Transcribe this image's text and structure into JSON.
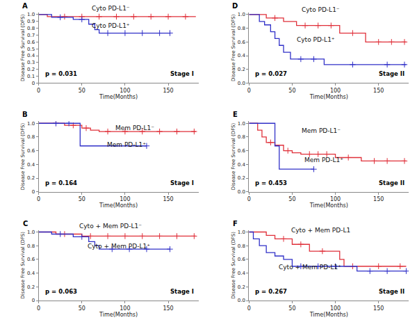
{
  "chart_data": [
    {
      "type": "line",
      "title": "A",
      "xlabel": "Time(Months)",
      "ylabel": "Disease Free Survival (DFS)",
      "annotations": [
        "p = 0.031",
        "Stage I"
      ],
      "line_style": "step",
      "marker": "cross",
      "grid": false,
      "xlim": [
        0,
        185
      ],
      "xticks": [
        0,
        50,
        100,
        150
      ],
      "ylim": [
        0,
        1.03
      ],
      "yticks": [
        0,
        0.1,
        0.2,
        0.3,
        0.4,
        0.5,
        0.6,
        0.7,
        0.8,
        0.9,
        {
          "value": 1,
          "label": "1.0"
        }
      ],
      "series": [
        {
          "name": "Cyto PD-L1⁻",
          "color": "#e0303a",
          "x": [
            0,
            10,
            182
          ],
          "values": [
            1,
            0.97,
            0.97
          ],
          "censored": [
            30,
            50,
            70,
            90,
            110,
            130,
            150,
            170
          ]
        },
        {
          "name": "Cyto PD-L1⁺",
          "color": "#3030c8",
          "x": [
            0,
            15,
            40,
            58,
            65,
            70,
            152
          ],
          "values": [
            1,
            0.96,
            0.93,
            0.86,
            0.78,
            0.73,
            0.73
          ],
          "censored": [
            25,
            50,
            80,
            100,
            120,
            140,
            152
          ]
        }
      ]
    },
    {
      "type": "line",
      "title": "B",
      "xlabel": "Time(Months)",
      "ylabel": "Disease Free Survival (DFS)",
      "annotations": [
        "p = 0.164",
        "Stage I"
      ],
      "line_style": "step",
      "marker": "cross",
      "grid": false,
      "xlim": [
        0,
        185
      ],
      "xticks": [
        0,
        50,
        100,
        150
      ],
      "ylim": [
        0,
        1.03
      ],
      "yticks": [
        0,
        0.2,
        0.4,
        0.6,
        0.8,
        {
          "value": 1,
          "label": "1.0"
        }
      ],
      "series": [
        {
          "name": "Mem PD-L1⁻",
          "color": "#e0303a",
          "x": [
            0,
            30,
            50,
            60,
            70,
            182
          ],
          "values": [
            1,
            0.97,
            0.93,
            0.9,
            0.88,
            0.88
          ],
          "censored": [
            20,
            40,
            55,
            80,
            100,
            120,
            140,
            160,
            180
          ]
        },
        {
          "name": "Mem PD-L1⁺",
          "color": "#3030c8",
          "x": [
            0,
            48,
            125
          ],
          "values": [
            1,
            0.67,
            0.67
          ],
          "censored": [
            20,
            35,
            125
          ]
        }
      ]
    },
    {
      "type": "line",
      "title": "C",
      "xlabel": "Time(Months)",
      "ylabel": "Disease Free Survival (DFS)",
      "annotations": [
        "p = 0.063",
        "Stage I"
      ],
      "line_style": "step",
      "marker": "cross",
      "grid": false,
      "xlim": [
        0,
        185
      ],
      "xticks": [
        0,
        50,
        100,
        150
      ],
      "ylim": [
        0,
        1.03
      ],
      "yticks": [
        0,
        0.2,
        0.4,
        0.6,
        0.8,
        {
          "value": 1,
          "label": "1.0"
        }
      ],
      "series": [
        {
          "name": "Cyto + Mem PD-L1⁻",
          "color": "#e0303a",
          "x": [
            0,
            20,
            50,
            182
          ],
          "values": [
            1,
            0.97,
            0.94,
            0.94
          ],
          "censored": [
            30,
            60,
            80,
            100,
            120,
            140,
            160,
            180
          ]
        },
        {
          "name": "Cyto + Mem PD-L1⁺",
          "color": "#3030c8",
          "x": [
            0,
            15,
            40,
            58,
            65,
            70,
            152
          ],
          "values": [
            1,
            0.97,
            0.93,
            0.86,
            0.8,
            0.75,
            0.75
          ],
          "censored": [
            25,
            50,
            85,
            105,
            125,
            152
          ]
        }
      ]
    },
    {
      "type": "line",
      "title": "D",
      "xlabel": "Time(Months)",
      "ylabel": "Disease Free Survival (DFS)",
      "annotations": [
        "p = 0.027",
        "Stage II"
      ],
      "line_style": "step",
      "marker": "cross",
      "grid": false,
      "xlim": [
        0,
        185
      ],
      "xticks": [
        0,
        50,
        100,
        150
      ],
      "ylim": [
        0,
        1.03
      ],
      "yticks": [
        {
          "value": 0,
          "label": "0.0"
        },
        0.2,
        0.4,
        0.6,
        0.8,
        {
          "value": 1,
          "label": "1.0"
        }
      ],
      "series": [
        {
          "name": "Cyto PD-L1⁻",
          "color": "#e0303a",
          "x": [
            0,
            20,
            40,
            55,
            105,
            135,
            182
          ],
          "values": [
            1,
            0.95,
            0.9,
            0.84,
            0.73,
            0.6,
            0.6
          ],
          "censored": [
            30,
            65,
            80,
            95,
            120,
            150,
            165,
            180
          ]
        },
        {
          "name": "Cyto PD-L1⁺",
          "color": "#3030c8",
          "x": [
            0,
            12,
            18,
            25,
            30,
            35,
            40,
            48,
            87,
            182
          ],
          "values": [
            1,
            0.9,
            0.85,
            0.75,
            0.65,
            0.55,
            0.45,
            0.35,
            0.27,
            0.27
          ],
          "censored": [
            60,
            75,
            120,
            160,
            180
          ]
        }
      ]
    },
    {
      "type": "line",
      "title": "E",
      "xlabel": "Time(Months)",
      "ylabel": "Disease Free Survival (DFS)",
      "annotations": [
        "p = 0.453",
        "Stage II"
      ],
      "line_style": "step",
      "marker": "cross",
      "grid": false,
      "xlim": [
        0,
        185
      ],
      "xticks": [
        0,
        50,
        100,
        150
      ],
      "ylim": [
        0,
        1.03
      ],
      "yticks": [
        {
          "value": 0,
          "label": "0.0"
        },
        0.2,
        0.4,
        0.6,
        0.8,
        {
          "value": 1,
          "label": "1.0"
        }
      ],
      "series": [
        {
          "name": "Mem PD-L1⁻",
          "color": "#e0303a",
          "x": [
            0,
            10,
            15,
            20,
            30,
            40,
            50,
            60,
            100,
            130,
            182
          ],
          "values": [
            1,
            0.9,
            0.8,
            0.72,
            0.68,
            0.6,
            0.57,
            0.55,
            0.5,
            0.45,
            0.45
          ],
          "censored": [
            25,
            45,
            70,
            80,
            90,
            115,
            145,
            160,
            180
          ]
        },
        {
          "name": "Mem PD-L1⁺",
          "color": "#3030c8",
          "x": [
            0,
            30,
            35,
            75
          ],
          "values": [
            1,
            0.67,
            0.33,
            0.33
          ],
          "censored": [
            75
          ]
        }
      ]
    },
    {
      "type": "line",
      "title": "F",
      "xlabel": "Time(Months)",
      "ylabel": "Disease Free Survival (DFS)",
      "annotations": [
        "p = 0.267",
        "Stage II"
      ],
      "line_style": "step",
      "marker": "cross",
      "grid": false,
      "xlim": [
        0,
        185
      ],
      "xticks": [
        0,
        50,
        100,
        150
      ],
      "ylim": [
        0,
        1.03
      ],
      "yticks": [
        {
          "value": 0,
          "label": "0.0"
        },
        0.2,
        0.4,
        0.6,
        0.8,
        {
          "value": 1,
          "label": "1.0"
        }
      ],
      "series": [
        {
          "name": "Cyto + Mem PD-L1",
          "color": "#e0303a",
          "x": [
            0,
            20,
            30,
            50,
            70,
            105,
            110,
            182
          ],
          "values": [
            1,
            0.95,
            0.9,
            0.82,
            0.72,
            0.6,
            0.5,
            0.5
          ],
          "censored": [
            40,
            60,
            85,
            120,
            150,
            175
          ]
        },
        {
          "name": "Cyto + Mem PD-L1⁺",
          "color": "#3030c8",
          "x": [
            0,
            5,
            12,
            20,
            30,
            40,
            50,
            125,
            182
          ],
          "values": [
            1,
            0.9,
            0.8,
            0.7,
            0.65,
            0.6,
            0.5,
            0.43,
            0.43
          ],
          "censored": [
            60,
            80,
            100,
            140,
            160,
            182
          ]
        }
      ]
    }
  ]
}
